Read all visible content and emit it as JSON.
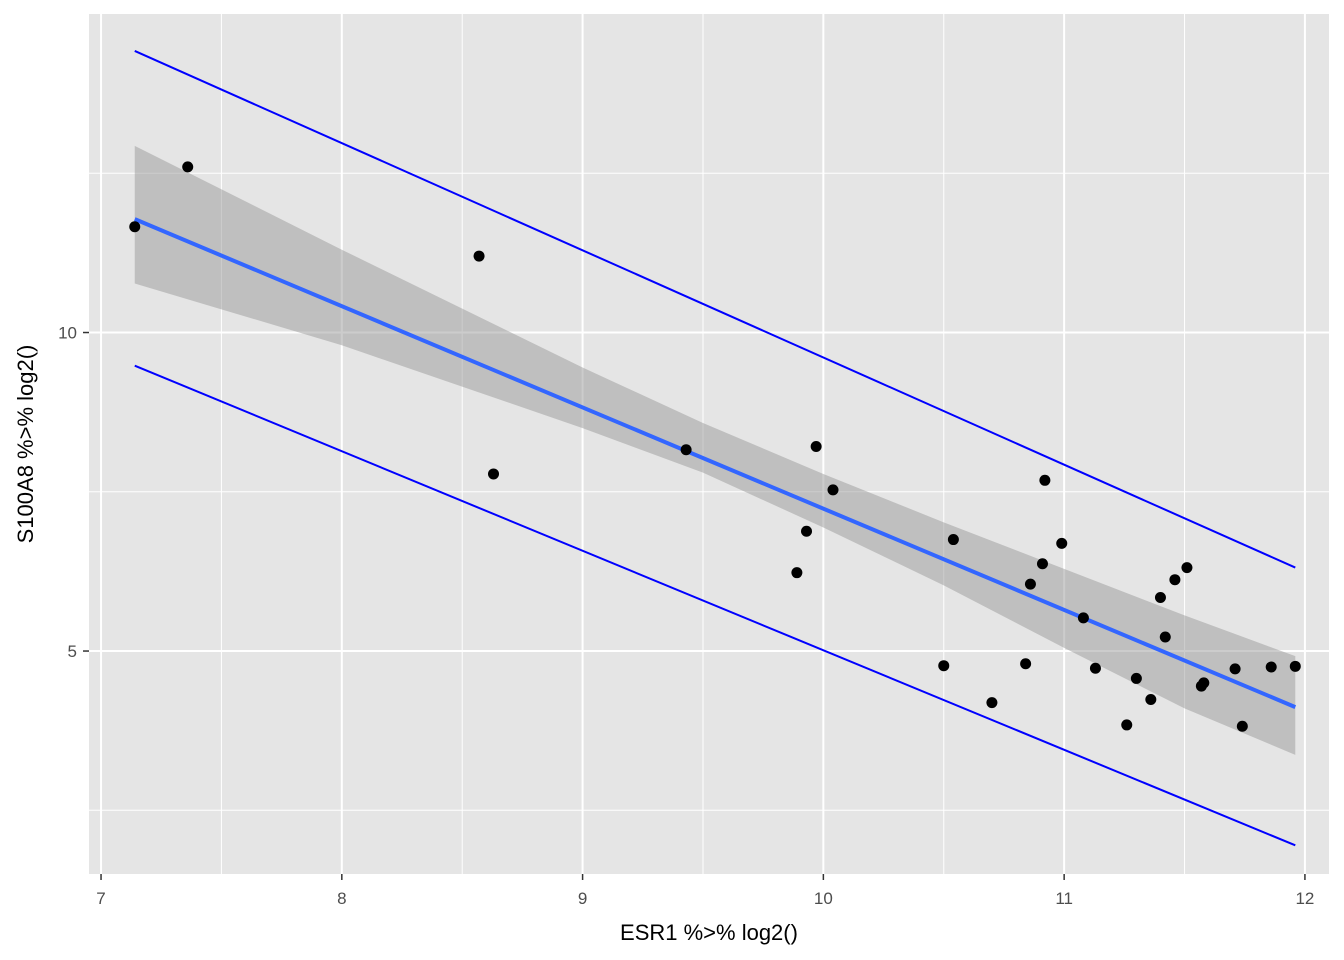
{
  "chart_data": {
    "type": "scatter",
    "title": "",
    "xlabel": "ESR1 %>% log2()",
    "ylabel": "S100A8 %>% log2()",
    "xlim": [
      6.95,
      12.1
    ],
    "ylim": [
      1.5,
      15
    ],
    "x_ticks": [
      7,
      8,
      9,
      10,
      11,
      12
    ],
    "x_tick_labels": [
      "7",
      "8",
      "9",
      "10",
      "11",
      "12"
    ],
    "y_ticks": [
      5,
      10
    ],
    "y_tick_labels": [
      "5",
      "10"
    ],
    "grid": true,
    "points": [
      {
        "x": 7.14,
        "y": 11.66
      },
      {
        "x": 7.36,
        "y": 12.6
      },
      {
        "x": 8.57,
        "y": 11.2
      },
      {
        "x": 8.63,
        "y": 7.78
      },
      {
        "x": 9.43,
        "y": 8.16
      },
      {
        "x": 9.89,
        "y": 6.23
      },
      {
        "x": 9.93,
        "y": 6.88
      },
      {
        "x": 9.97,
        "y": 8.21
      },
      {
        "x": 10.04,
        "y": 7.53
      },
      {
        "x": 10.5,
        "y": 4.77
      },
      {
        "x": 10.54,
        "y": 6.75
      },
      {
        "x": 10.7,
        "y": 4.19
      },
      {
        "x": 10.84,
        "y": 4.8
      },
      {
        "x": 10.86,
        "y": 6.05
      },
      {
        "x": 10.91,
        "y": 6.37
      },
      {
        "x": 10.92,
        "y": 7.68
      },
      {
        "x": 10.99,
        "y": 6.69
      },
      {
        "x": 11.08,
        "y": 5.52
      },
      {
        "x": 11.13,
        "y": 4.73
      },
      {
        "x": 11.26,
        "y": 3.84
      },
      {
        "x": 11.3,
        "y": 4.57
      },
      {
        "x": 11.36,
        "y": 4.24
      },
      {
        "x": 11.4,
        "y": 5.84
      },
      {
        "x": 11.42,
        "y": 5.22
      },
      {
        "x": 11.46,
        "y": 6.12
      },
      {
        "x": 11.51,
        "y": 6.31
      },
      {
        "x": 11.57,
        "y": 4.45
      },
      {
        "x": 11.58,
        "y": 4.5
      },
      {
        "x": 11.71,
        "y": 4.72
      },
      {
        "x": 11.74,
        "y": 3.82
      },
      {
        "x": 11.86,
        "y": 4.75
      },
      {
        "x": 11.96,
        "y": 4.76
      }
    ],
    "fit": {
      "x": [
        7.14,
        11.96
      ],
      "y": [
        11.78,
        4.12
      ],
      "color": "#3366ff"
    },
    "confidence_band": {
      "x": [
        7.14,
        8.0,
        9.0,
        9.5,
        10.0,
        10.5,
        11.0,
        11.5,
        11.96
      ],
      "upper": [
        12.93,
        11.3,
        9.45,
        8.58,
        7.78,
        7.02,
        6.29,
        5.56,
        4.92
      ],
      "lower": [
        10.77,
        9.8,
        8.5,
        7.8,
        6.94,
        6.03,
        5.05,
        4.1,
        3.37
      ],
      "color": "#999999"
    },
    "prediction_lines": [
      {
        "x": [
          7.14,
          11.96
        ],
        "y": [
          14.42,
          6.31
        ],
        "color": "#0000ff"
      },
      {
        "x": [
          7.14,
          11.96
        ],
        "y": [
          9.48,
          1.95
        ],
        "color": "#0000ff"
      }
    ],
    "colors": {
      "panel": "#e5e5e5",
      "grid": "#ffffff",
      "point": "#000000"
    }
  }
}
